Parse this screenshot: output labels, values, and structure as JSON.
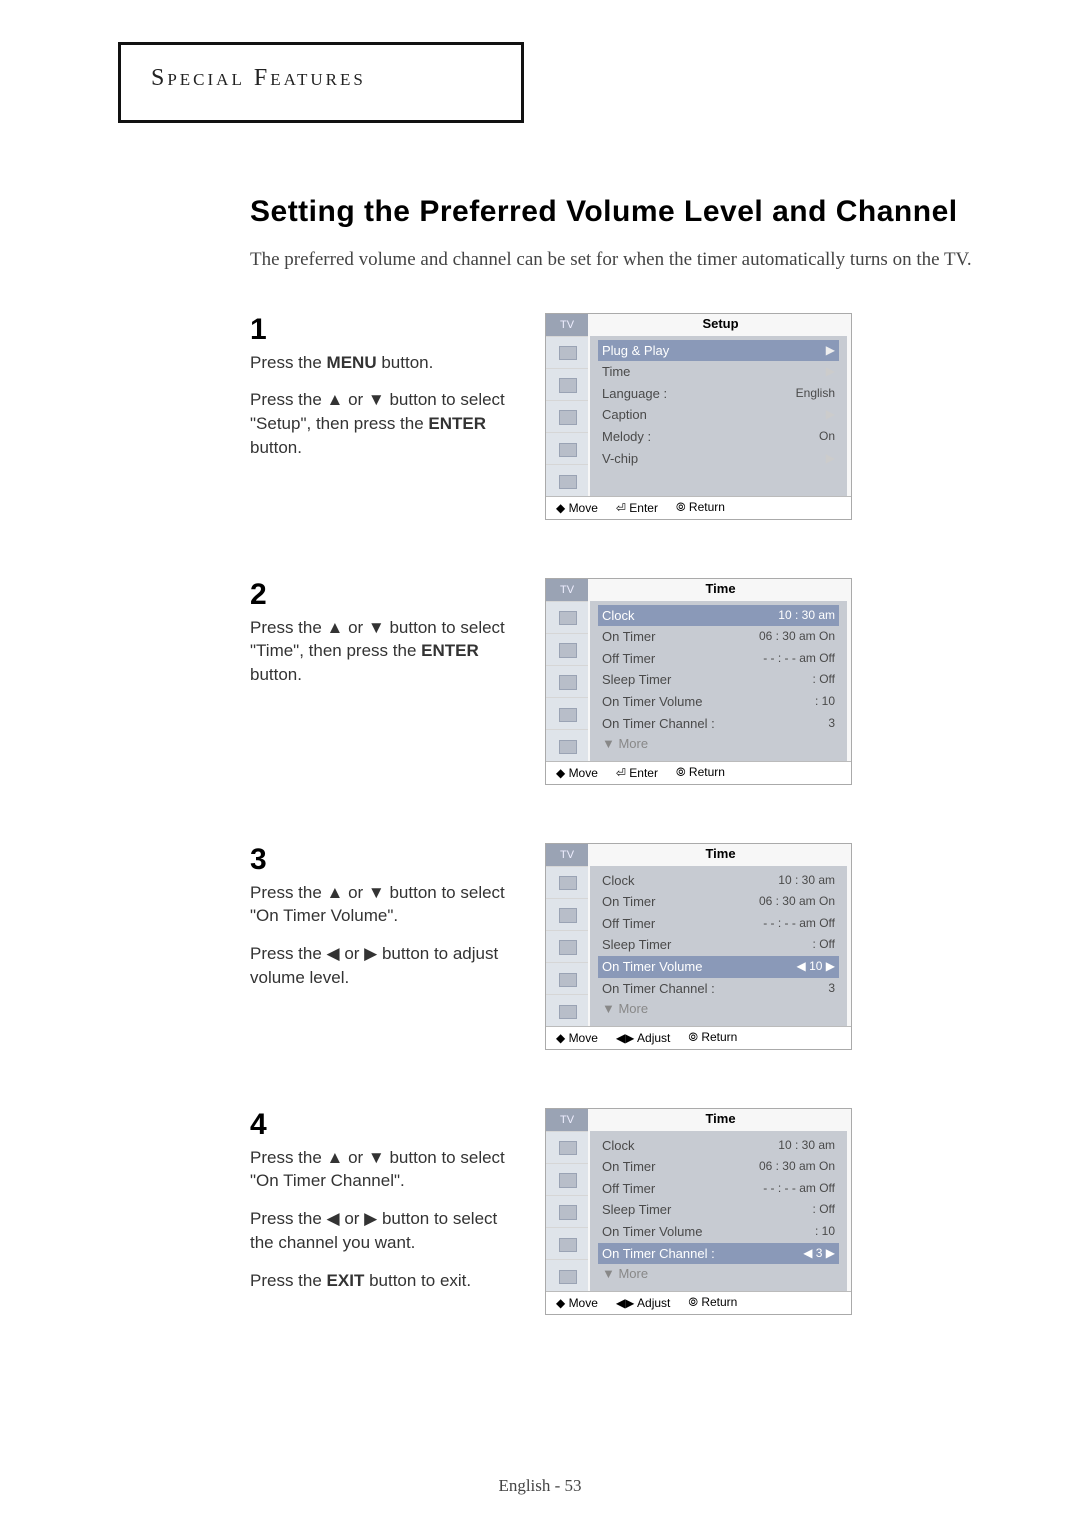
{
  "header": {
    "section": "Special Features"
  },
  "title": "Setting the Preferred Volume Level and Channel",
  "intro": "The preferred volume and channel can be set for when the timer automatically turns on the TV.",
  "footer": "English - 53",
  "step1": {
    "num": "1",
    "line1": "Press the <b>MENU</b> button.",
    "line2": "Press the ▲ or ▼ button to select \"Setup\", then press the <b>ENTER</b> button."
  },
  "step2": {
    "num": "2",
    "line1": "Press the ▲ or ▼ button to select \"Time\", then press the <b>ENTER</b> button."
  },
  "step3": {
    "num": "3",
    "line1": "Press the ▲ or ▼ button to select \"On Timer Volume\".",
    "line2": "Press the ◀ or ▶ button to adjust volume level."
  },
  "step4": {
    "num": "4",
    "line1": "Press the ▲ or ▼ button to select \"On Timer Channel\".",
    "line2": "Press the ◀ or ▶ button to select the channel you want.",
    "line3": "Press the <b>EXIT</b> button to exit."
  },
  "osd1": {
    "tv": "TV",
    "title": "Setup",
    "rows": [
      {
        "l": "Plug & Play",
        "r": "",
        "sel": true,
        "chev": "▶"
      },
      {
        "l": "Time",
        "r": "",
        "chev": "▶"
      },
      {
        "l": "Language :",
        "r": "English"
      },
      {
        "l": "Caption",
        "r": "",
        "chev": "▶"
      },
      {
        "l": "Melody   :",
        "r": "On"
      },
      {
        "l": "V-chip",
        "r": "",
        "chev": "▶"
      }
    ],
    "hint": {
      "a": "◆ Move",
      "b": "⏎ Enter",
      "c": "⦾ Return"
    }
  },
  "osd2": {
    "tv": "TV",
    "title": "Time",
    "rows": [
      {
        "l": "Clock",
        "r": "10 : 30 am",
        "sel": true
      },
      {
        "l": "On Timer",
        "r": "06 : 30 am On"
      },
      {
        "l": "Off Timer",
        "r": "- - : - - am Off"
      },
      {
        "l": "Sleep Timer",
        "r": ": Off"
      },
      {
        "l": "On Timer Volume",
        "r": ": 10"
      },
      {
        "l": "On Timer Channel :",
        "r": "3"
      }
    ],
    "more": "▼ More",
    "hint": {
      "a": "◆ Move",
      "b": "⏎ Enter",
      "c": "⦾ Return"
    }
  },
  "osd3": {
    "tv": "TV",
    "title": "Time",
    "rows": [
      {
        "l": "Clock",
        "r": "10 : 30 am"
      },
      {
        "l": "On Timer",
        "r": "06 : 30 am On"
      },
      {
        "l": "Off Timer",
        "r": "- - : - - am Off"
      },
      {
        "l": "Sleep Timer",
        "r": ": Off"
      },
      {
        "l": "On Timer Volume",
        "r": "◀ 10 ▶",
        "sel": true
      },
      {
        "l": "On Timer Channel :",
        "r": "3"
      }
    ],
    "more": "▼ More",
    "hint": {
      "a": "◆ Move",
      "b": "◀▶ Adjust",
      "c": "⦾ Return"
    }
  },
  "osd4": {
    "tv": "TV",
    "title": "Time",
    "rows": [
      {
        "l": "Clock",
        "r": "10 : 30 am"
      },
      {
        "l": "On Timer",
        "r": "06 : 30 am On"
      },
      {
        "l": "Off Timer",
        "r": "- - : - - am Off"
      },
      {
        "l": "Sleep Timer",
        "r": ": Off"
      },
      {
        "l": "On Timer Volume",
        "r": ": 10"
      },
      {
        "l": "On Timer Channel :",
        "r": "◀   3 ▶",
        "sel": true
      }
    ],
    "more": "▼ More",
    "hint": {
      "a": "◆ Move",
      "b": "◀▶ Adjust",
      "c": "⦾ Return"
    }
  }
}
